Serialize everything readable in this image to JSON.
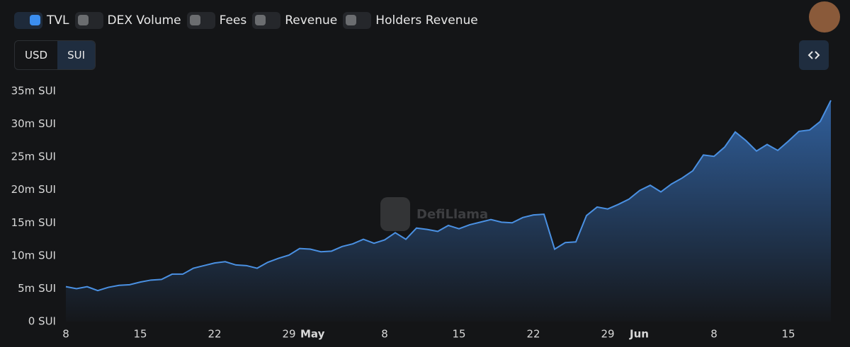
{
  "toggles": [
    {
      "label": "TVL",
      "checked": true
    },
    {
      "label": "DEX Volume",
      "checked": false
    },
    {
      "label": "Fees",
      "checked": false
    },
    {
      "label": "Revenue",
      "checked": false
    },
    {
      "label": "Holders Revenue",
      "checked": false
    }
  ],
  "denominations": {
    "options": [
      "USD",
      "SUI"
    ],
    "selected": 1
  },
  "watermark": "DefiLlama",
  "chart_data": {
    "type": "area",
    "categories": [
      "8",
      null,
      null,
      null,
      null,
      null,
      null,
      "15",
      null,
      null,
      null,
      null,
      null,
      null,
      "22",
      null,
      null,
      null,
      null,
      null,
      null,
      "29",
      null,
      "May",
      null,
      null,
      null,
      null,
      null,
      null,
      "8",
      null,
      null,
      null,
      null,
      null,
      null,
      "15",
      null,
      null,
      null,
      null,
      null,
      null,
      "22",
      null,
      null,
      null,
      null,
      null,
      null,
      "29",
      null,
      null,
      "Jun",
      null,
      null,
      null,
      null,
      null,
      null,
      "8",
      null,
      null,
      null,
      null,
      null,
      null,
      "15",
      null,
      null,
      null,
      null
    ],
    "series": [
      {
        "name": "TVL",
        "color": "#4a90e2",
        "values": [
          5300000,
          5000000,
          5300000,
          4700000,
          5200000,
          5500000,
          5600000,
          6000000,
          6300000,
          6400000,
          7200000,
          7200000,
          8100000,
          8500000,
          8900000,
          9100000,
          8600000,
          8500000,
          8100000,
          9000000,
          9600000,
          10100000,
          11100000,
          11000000,
          10600000,
          10700000,
          11400000,
          11800000,
          12500000,
          11900000,
          12400000,
          13500000,
          12500000,
          14200000,
          14000000,
          13700000,
          14600000,
          14100000,
          14700000,
          15100000,
          15500000,
          15100000,
          15000000,
          15800000,
          16200000,
          16300000,
          11000000,
          12000000,
          12100000,
          16100000,
          17400000,
          17100000,
          17800000,
          18600000,
          19900000,
          20700000,
          19700000,
          20900000,
          21800000,
          22900000,
          25300000,
          25100000,
          26500000,
          28800000,
          27500000,
          25900000,
          26900000,
          26000000,
          27400000,
          28900000,
          29100000,
          30400000,
          33600000
        ]
      }
    ],
    "ylim": [
      0,
      35000000
    ],
    "yticks": [
      {
        "value": 0,
        "label": "0 SUI"
      },
      {
        "value": 5000000,
        "label": "5m SUI"
      },
      {
        "value": 10000000,
        "label": "10m SUI"
      },
      {
        "value": 15000000,
        "label": "15m SUI"
      },
      {
        "value": 20000000,
        "label": "20m SUI"
      },
      {
        "value": 25000000,
        "label": "25m SUI"
      },
      {
        "value": 30000000,
        "label": "30m SUI"
      },
      {
        "value": 35000000,
        "label": "35m SUI"
      }
    ],
    "grid": false
  }
}
